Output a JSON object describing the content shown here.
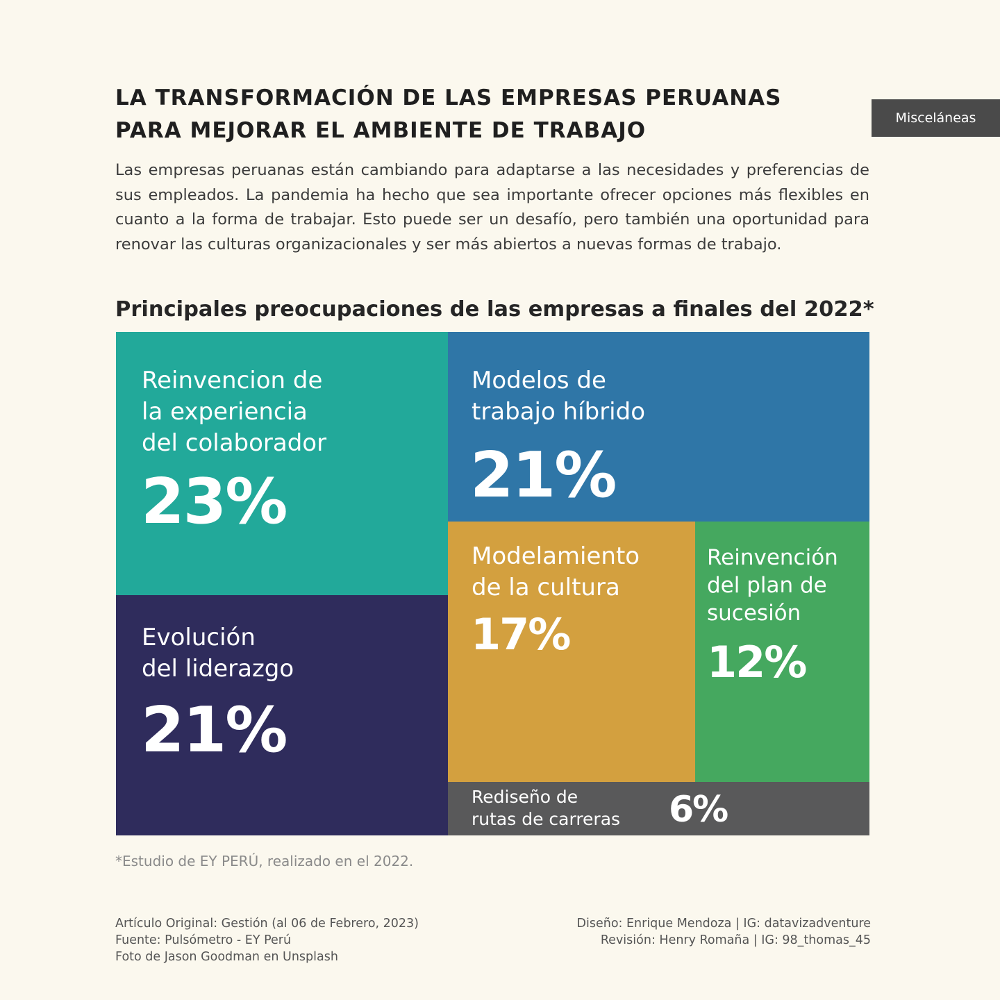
{
  "header": {
    "title_lines": [
      "LA TRANSFORMACIÓN DE LAS EMPRESAS PERUANAS",
      "PARA MEJORAR EL AMBIENTE DE TRABAJO"
    ],
    "tag": "Misceláneas"
  },
  "intro": "Las empresas peruanas están cambiando para adaptarse a las necesidades y preferencias de sus empleados. La pandemia ha hecho que sea importante ofrecer opciones más flexibles en cuanto a la forma de trabajar. Esto puede ser un desafío, pero también una oportunidad para renovar las culturas organizacionales y ser más abiertos a nuevas formas de trabajo.",
  "chart_data": {
    "type": "treemap",
    "title": "Principales preocupaciones de las empresas a finales del 2022*",
    "items": [
      {
        "label_lines": [
          "Reinvencion de",
          "la experiencia",
          "del colaborador"
        ],
        "value": 23,
        "display": "23%",
        "color": "#22a99a"
      },
      {
        "label_lines": [
          "Evolución",
          "del liderazgo"
        ],
        "value": 21,
        "display": "21%",
        "color": "#2f2c5c"
      },
      {
        "label_lines": [
          "Modelos de",
          "trabajo híbrido"
        ],
        "value": 21,
        "display": "21%",
        "color": "#2f76a7"
      },
      {
        "label_lines": [
          "Modelamiento",
          "de la cultura"
        ],
        "value": 17,
        "display": "17%",
        "color": "#d3a03f"
      },
      {
        "label_lines": [
          "Reinvención",
          "del plan de",
          "sucesión"
        ],
        "value": 12,
        "display": "12%",
        "color": "#45a85f"
      },
      {
        "label_lines": [
          "Rediseño de",
          "rutas de carreras"
        ],
        "value": 6,
        "display": "6%",
        "color": "#59595a"
      }
    ]
  },
  "note": "*Estudio de EY PERÚ, realizado en el 2022.",
  "footer": {
    "left": [
      "Artículo Original: Gestión (al 06 de Febrero, 2023)",
      "Fuente: Pulsómetro - EY Perú",
      "Foto de Jason Goodman en Unsplash"
    ],
    "right": [
      "Diseño: Enrique Mendoza  |  IG: datavizadventure",
      "Revisión: Henry Romaña  |  IG: 98_thomas_45"
    ]
  }
}
